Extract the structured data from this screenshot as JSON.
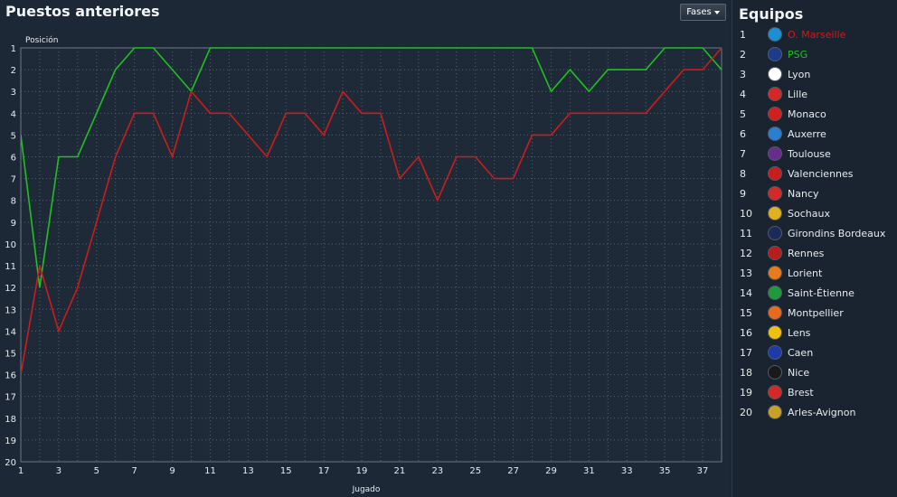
{
  "header": {
    "title": "Puestos anteriores",
    "phases_button": "Fases"
  },
  "teams_panel": {
    "title": "Equipos",
    "teams": [
      {
        "pos": "1",
        "name": "O. Marseille",
        "color": "#cc1c1c",
        "crest": "#1a8fd6",
        "highlight": true
      },
      {
        "pos": "2",
        "name": "PSG",
        "color": "#20c020",
        "crest": "#1e3a8a",
        "highlight": true
      },
      {
        "pos": "3",
        "name": "Lyon",
        "color": "#e8ecef",
        "crest": "#ffffff"
      },
      {
        "pos": "4",
        "name": "Lille",
        "color": "#e8ecef",
        "crest": "#d22828"
      },
      {
        "pos": "5",
        "name": "Monaco",
        "color": "#e8ecef",
        "crest": "#d21e1e"
      },
      {
        "pos": "6",
        "name": "Auxerre",
        "color": "#e8ecef",
        "crest": "#2a7fd0"
      },
      {
        "pos": "7",
        "name": "Toulouse",
        "color": "#e8ecef",
        "crest": "#6a2c8c"
      },
      {
        "pos": "8",
        "name": "Valenciennes",
        "color": "#e8ecef",
        "crest": "#c81e1e"
      },
      {
        "pos": "9",
        "name": "Nancy",
        "color": "#e8ecef",
        "crest": "#d62828"
      },
      {
        "pos": "10",
        "name": "Sochaux",
        "color": "#e8ecef",
        "crest": "#e0b020"
      },
      {
        "pos": "11",
        "name": "Girondins Bordeaux",
        "color": "#e8ecef",
        "crest": "#1c2a5a"
      },
      {
        "pos": "12",
        "name": "Rennes",
        "color": "#e8ecef",
        "crest": "#b81c1c"
      },
      {
        "pos": "13",
        "name": "Lorient",
        "color": "#e8ecef",
        "crest": "#e87a1c"
      },
      {
        "pos": "14",
        "name": "Saint-Étienne",
        "color": "#e8ecef",
        "crest": "#1e9a3a"
      },
      {
        "pos": "15",
        "name": "Montpellier",
        "color": "#e8ecef",
        "crest": "#e86a1c"
      },
      {
        "pos": "16",
        "name": "Lens",
        "color": "#e8ecef",
        "crest": "#f0c010"
      },
      {
        "pos": "17",
        "name": "Caen",
        "color": "#e8ecef",
        "crest": "#1c3aa8"
      },
      {
        "pos": "18",
        "name": "Nice",
        "color": "#e8ecef",
        "crest": "#1a1a1a"
      },
      {
        "pos": "19",
        "name": "Brest",
        "color": "#e8ecef",
        "crest": "#d22828"
      },
      {
        "pos": "20",
        "name": "Arles-Avignon",
        "color": "#e8ecef",
        "crest": "#c8a028"
      }
    ]
  },
  "chart_data": {
    "type": "line",
    "title": "Puestos anteriores",
    "xlabel": "Jugado",
    "ylabel": "Posición",
    "xlim": [
      1,
      38
    ],
    "ylim": [
      1,
      20
    ],
    "y_inverted": true,
    "x_tick_labels": [
      "1",
      "3",
      "5",
      "7",
      "9",
      "11",
      "13",
      "15",
      "17",
      "19",
      "21",
      "23",
      "25",
      "27",
      "29",
      "31",
      "33",
      "35",
      "37"
    ],
    "y_tick_labels": [
      "1",
      "2",
      "3",
      "4",
      "5",
      "6",
      "7",
      "8",
      "9",
      "10",
      "11",
      "12",
      "13",
      "14",
      "15",
      "16",
      "17",
      "18",
      "19",
      "20"
    ],
    "grid": true,
    "series": [
      {
        "name": "O. Marseille",
        "color": "#cc1c1c",
        "x": [
          1,
          2,
          3,
          4,
          5,
          6,
          7,
          8,
          9,
          10,
          11,
          12,
          13,
          14,
          15,
          16,
          17,
          18,
          19,
          20,
          21,
          22,
          23,
          24,
          25,
          26,
          27,
          28,
          29,
          30,
          31,
          32,
          33,
          34,
          35,
          36,
          37,
          38
        ],
        "values": [
          16,
          11,
          14,
          12,
          9,
          6,
          4,
          4,
          6,
          3,
          4,
          4,
          5,
          6,
          4,
          4,
          5,
          3,
          4,
          4,
          7,
          6,
          8,
          6,
          6,
          7,
          7,
          5,
          5,
          4,
          4,
          4,
          4,
          4,
          3,
          2,
          2,
          1
        ]
      },
      {
        "name": "PSG",
        "color": "#20c020",
        "x": [
          1,
          2,
          3,
          4,
          5,
          6,
          7,
          8,
          9,
          10,
          11,
          12,
          13,
          14,
          15,
          16,
          17,
          18,
          19,
          20,
          21,
          22,
          23,
          24,
          25,
          26,
          27,
          28,
          29,
          30,
          31,
          32,
          33,
          34,
          35,
          36,
          37,
          38
        ],
        "values": [
          5,
          12,
          6,
          6,
          4,
          2,
          1,
          1,
          2,
          3,
          1,
          1,
          1,
          1,
          1,
          1,
          1,
          1,
          1,
          1,
          1,
          1,
          1,
          1,
          1,
          1,
          1,
          1,
          3,
          2,
          3,
          2,
          2,
          2,
          1,
          1,
          1,
          2
        ]
      }
    ]
  }
}
